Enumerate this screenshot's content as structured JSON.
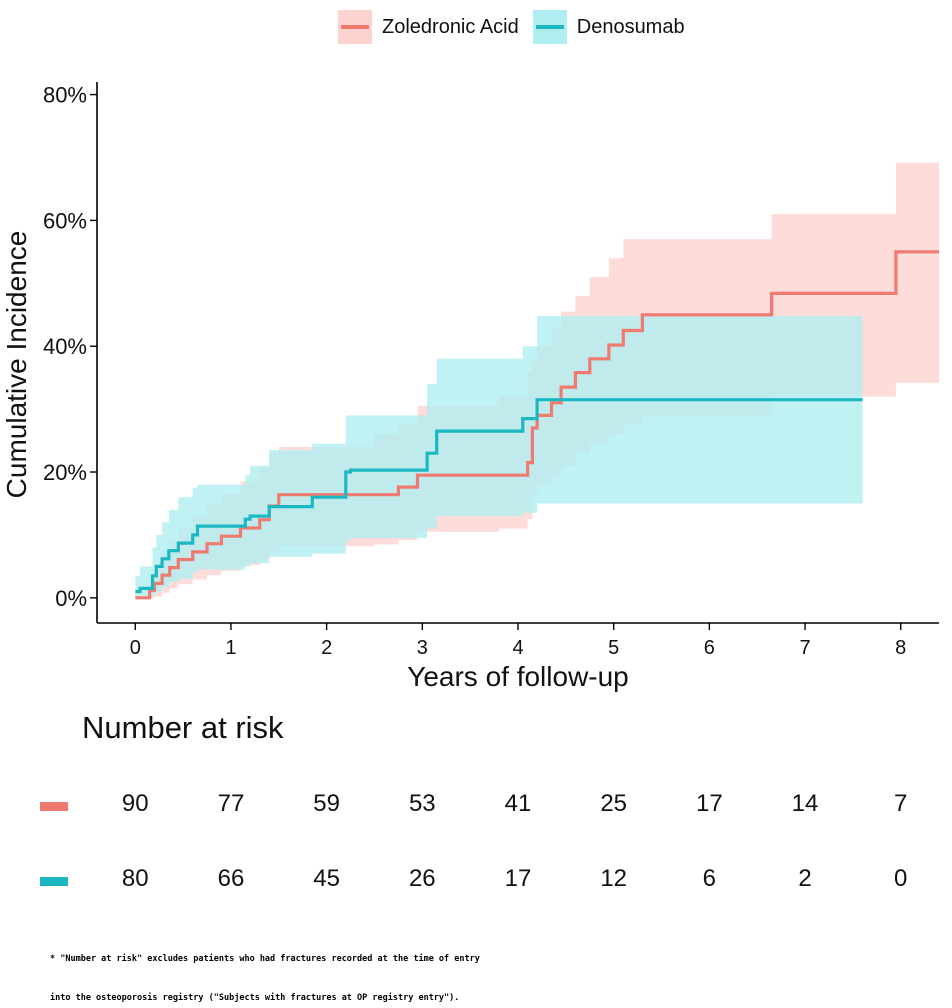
{
  "legend": {
    "items": [
      {
        "label": "Zoledronic Acid",
        "color": "#F07A70",
        "fill": "#FDD3D0"
      },
      {
        "label": "Denosumab",
        "color": "#1CB8C2",
        "fill": "#B0EDF0"
      }
    ]
  },
  "chart_data": {
    "type": "line",
    "subtype": "step",
    "xlabel": "Years of follow-up",
    "ylabel": "Cumulative Incidence",
    "xlim": [
      -0.4,
      8.4
    ],
    "ylim": [
      -4,
      82
    ],
    "xticks": [
      0,
      1,
      2,
      3,
      4,
      5,
      6,
      7,
      8
    ],
    "yticks": [
      0,
      20,
      40,
      60,
      80
    ],
    "ytick_labels": [
      "0%",
      "20%",
      "40%",
      "60%",
      "80%"
    ],
    "grid": false,
    "legend_position": "top",
    "series": [
      {
        "name": "Zoledronic Acid",
        "color": "#F07A70",
        "band_color": "#FDD3D0",
        "x": [
          0,
          0.15,
          0.2,
          0.28,
          0.36,
          0.45,
          0.6,
          0.75,
          0.9,
          1.1,
          1.3,
          1.4,
          1.5,
          2.5,
          2.75,
          2.95,
          3.8,
          4.1,
          4.15,
          4.2,
          4.35,
          4.45,
          4.6,
          4.75,
          4.95,
          5.1,
          5.3,
          6.6,
          6.65,
          7.95,
          8.4
        ],
        "y": [
          0,
          1.2,
          2.3,
          3.6,
          4.8,
          6.1,
          7.3,
          8.6,
          9.8,
          11.1,
          12.4,
          14.6,
          16.4,
          16.4,
          17.6,
          19.5,
          19.5,
          21.5,
          27.0,
          29.0,
          31.0,
          33.5,
          35.8,
          38.0,
          40.2,
          42.5,
          45.0,
          45.0,
          48.4,
          55.0,
          55.0
        ],
        "lower": [
          0,
          0,
          0.2,
          0.8,
          1.5,
          2.2,
          2.9,
          3.6,
          4.3,
          5.2,
          6.0,
          7.2,
          8.2,
          8.5,
          9.2,
          10.5,
          11.0,
          12.5,
          16.5,
          18.0,
          19.5,
          21.0,
          23.0,
          24.5,
          26.0,
          27.5,
          29.0,
          29.0,
          32.0,
          34.2,
          34.2
        ],
        "upper": [
          0,
          3.0,
          5.0,
          7.0,
          9.0,
          11.0,
          13.0,
          15.0,
          16.5,
          18.5,
          20.5,
          23.0,
          24.0,
          26.0,
          27.5,
          30.5,
          32.0,
          36.0,
          38.0,
          40.0,
          43.0,
          45.5,
          48.0,
          51.0,
          54.0,
          57.0,
          57.0,
          57.0,
          61.0,
          69.2,
          69.2
        ]
      },
      {
        "name": "Denosumab",
        "color": "#1CB8C2",
        "band_color": "#B0EDF0",
        "x": [
          0,
          0.05,
          0.18,
          0.22,
          0.28,
          0.35,
          0.45,
          0.6,
          0.65,
          1.15,
          1.2,
          1.4,
          1.85,
          2.2,
          2.25,
          3.05,
          3.15,
          4.05,
          4.2,
          7.6
        ],
        "y": [
          1.0,
          1.5,
          3.5,
          5.0,
          6.2,
          7.5,
          8.7,
          10.0,
          11.4,
          12.5,
          13.0,
          14.5,
          16.0,
          20.0,
          20.3,
          23.0,
          26.5,
          28.5,
          31.5,
          31.5
        ],
        "lower": [
          0,
          0,
          0.5,
          1.0,
          1.7,
          2.5,
          3.0,
          4.0,
          4.5,
          5.0,
          5.5,
          6.5,
          7.0,
          9.0,
          9.5,
          11.0,
          13.0,
          13.5,
          15.0,
          15.0
        ],
        "upper": [
          3.5,
          5.0,
          8.0,
          10.0,
          12.0,
          14.0,
          16.0,
          17.5,
          18.0,
          19.5,
          21.0,
          23.5,
          24.5,
          29.0,
          29.0,
          34.0,
          38.0,
          40.0,
          44.8,
          44.8
        ]
      }
    ]
  },
  "risk_table": {
    "title": "Number at risk",
    "times": [
      0,
      1,
      2,
      3,
      4,
      5,
      6,
      7,
      8
    ],
    "rows": [
      {
        "name": "Zoledronic Acid",
        "color": "#F07A70",
        "values": [
          "90",
          "77",
          "59",
          "53",
          "41",
          "25",
          "17",
          "14",
          "7"
        ]
      },
      {
        "name": "Denosumab",
        "color": "#1CB8C2",
        "values": [
          "80",
          "66",
          "45",
          "26",
          "17",
          "12",
          "6",
          "2",
          "0"
        ]
      }
    ]
  },
  "footnote": {
    "line1": "* \"Number at risk\" excludes patients who had fractures recorded at the time of entry",
    "line2": "into the osteoporosis registry (\"Subjects with fractures at OP registry entry\")."
  }
}
